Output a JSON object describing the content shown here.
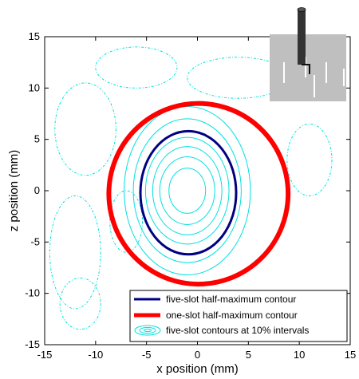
{
  "chart_data": {
    "type": "contour",
    "xlabel": "x position (mm)",
    "ylabel": "z position (mm)",
    "xlim": [
      -15,
      15
    ],
    "ylim": [
      -15,
      15
    ],
    "xticks": [
      -15,
      -10,
      -5,
      0,
      5,
      10,
      15
    ],
    "yticks": [
      -15,
      -10,
      -5,
      0,
      5,
      10,
      15
    ],
    "grid": false,
    "legend_position": "bottom-right",
    "series": [
      {
        "name": "five-slot half-maximum contour",
        "color": "#000080",
        "kind": "ellipse",
        "center": [
          -0.9,
          -0.2
        ],
        "rx": 4.7,
        "rz": 6.0
      },
      {
        "name": "one-slot half-maximum contour",
        "color": "#ff0000",
        "kind": "ellipse",
        "center": [
          0.1,
          -0.3
        ],
        "rx": 8.8,
        "rz": 8.8
      },
      {
        "name": "five-slot contours at 10% intervals",
        "color": "#00e0e0",
        "kind": "ellipses",
        "center": [
          -1.0,
          0.0
        ],
        "rx": [
          1.8,
          2.7,
          3.4,
          4.1,
          5.3,
          6.2
        ],
        "rz": [
          2.2,
          3.3,
          4.3,
          5.2,
          7.0,
          8.2
        ]
      }
    ],
    "legend": [
      "five-slot half-maximum contour",
      "one-slot half-maximum contour",
      "five-slot contours at 10% intervals"
    ],
    "colors": {
      "five_slot_half_max": "#000080",
      "one_slot_half_max": "#ff0000",
      "ten_percent_contours": "#00e0e0",
      "inset_plate": "#bfbfbf",
      "inset_tube": "#333333"
    },
    "inset": {
      "icon": "slotted-plate-with-probe-icon"
    }
  }
}
